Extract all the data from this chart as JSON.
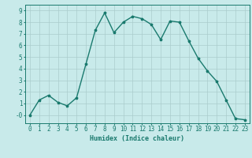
{
  "x": [
    0,
    1,
    2,
    3,
    4,
    5,
    6,
    7,
    8,
    9,
    10,
    11,
    12,
    13,
    14,
    15,
    16,
    17,
    18,
    19,
    20,
    21,
    22,
    23
  ],
  "y": [
    -0.0,
    1.3,
    1.7,
    1.1,
    0.8,
    1.5,
    4.4,
    7.3,
    8.8,
    7.1,
    8.0,
    8.5,
    8.3,
    7.8,
    6.5,
    8.1,
    8.0,
    6.4,
    4.9,
    3.8,
    2.9,
    1.3,
    -0.3,
    -0.4
  ],
  "line_color": "#1a7a6e",
  "marker": "*",
  "marker_size": 2.5,
  "bg_color": "#c8eaea",
  "grid_color": "#aacccc",
  "xlabel": "Humidex (Indice chaleur)",
  "xlim_min": -0.5,
  "xlim_max": 23.5,
  "ylim_min": -0.7,
  "ylim_max": 9.5,
  "yticks": [
    0,
    1,
    2,
    3,
    4,
    5,
    6,
    7,
    8,
    9
  ],
  "ytick_labels": [
    "-0",
    "1",
    "2",
    "3",
    "4",
    "5",
    "6",
    "7",
    "8",
    "9"
  ],
  "xticks": [
    0,
    1,
    2,
    3,
    4,
    5,
    6,
    7,
    8,
    9,
    10,
    11,
    12,
    13,
    14,
    15,
    16,
    17,
    18,
    19,
    20,
    21,
    22,
    23
  ],
  "xlabel_fontsize": 6.0,
  "tick_fontsize": 5.5,
  "line_width": 1.0
}
